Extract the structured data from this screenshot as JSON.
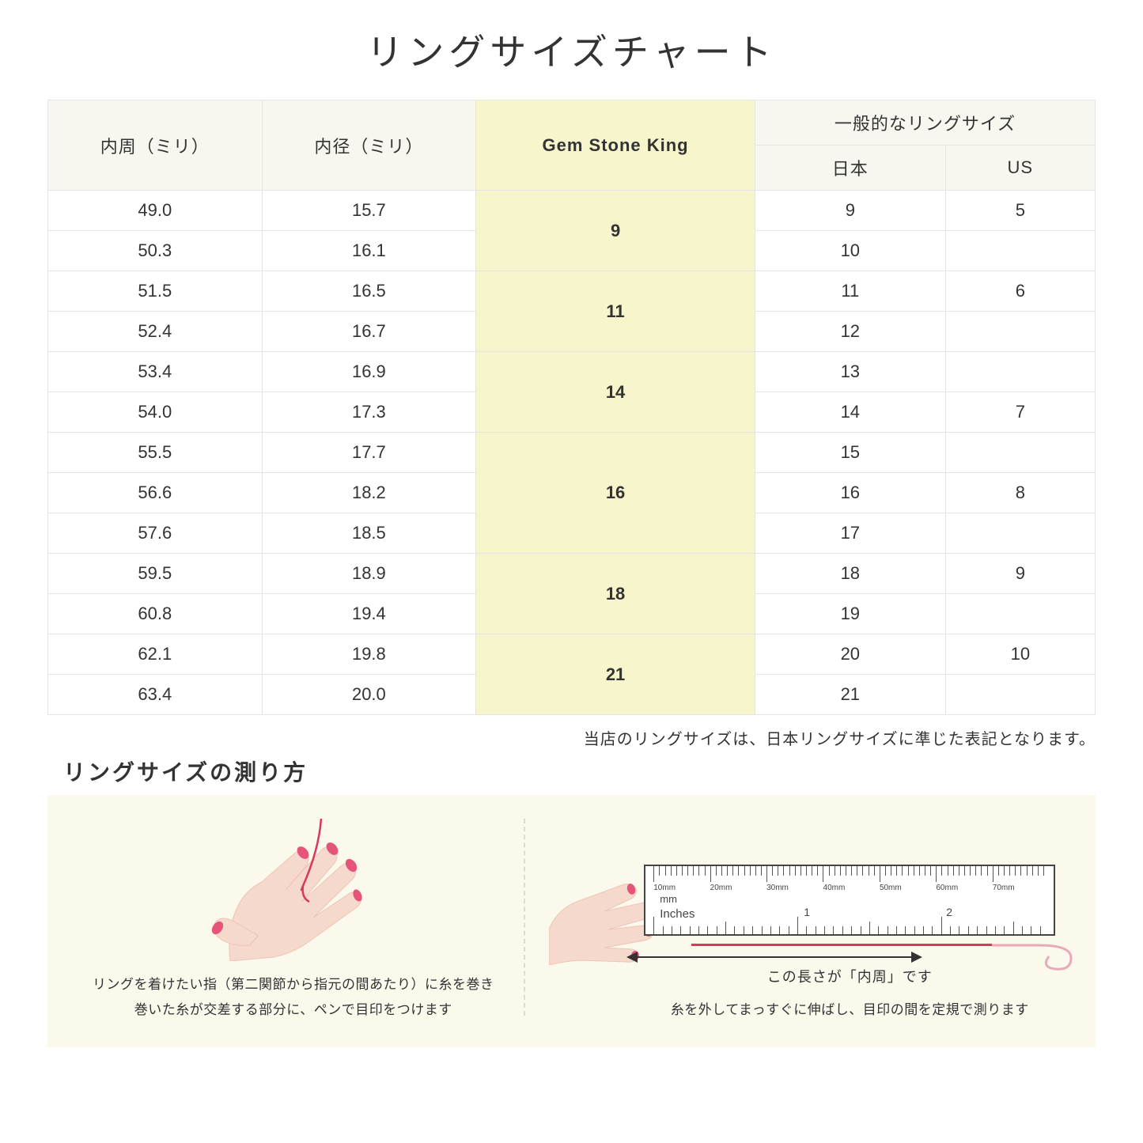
{
  "title": "リングサイズチャート",
  "table": {
    "headers": {
      "circumference": "内周（ミリ）",
      "diameter": "内径（ミリ）",
      "gsk": "Gem Stone King",
      "common_group": "一般的なリングサイズ",
      "japan": "日本",
      "us": "US"
    },
    "header_bg": "#f7f7f0",
    "highlight_bg": "#f7f5cc",
    "border_color": "#e5e5e5",
    "header_fontsize": 22,
    "cell_fontsize": 22,
    "groups": [
      {
        "gsk": "9",
        "rows": [
          {
            "c": "49.0",
            "d": "15.7",
            "jp": "9",
            "us": "5"
          },
          {
            "c": "50.3",
            "d": "16.1",
            "jp": "10",
            "us": ""
          }
        ]
      },
      {
        "gsk": "11",
        "rows": [
          {
            "c": "51.5",
            "d": "16.5",
            "jp": "11",
            "us": "6"
          },
          {
            "c": "52.4",
            "d": "16.7",
            "jp": "12",
            "us": ""
          }
        ]
      },
      {
        "gsk": "14",
        "rows": [
          {
            "c": "53.4",
            "d": "16.9",
            "jp": "13",
            "us": ""
          },
          {
            "c": "54.0",
            "d": "17.3",
            "jp": "14",
            "us": "7"
          }
        ]
      },
      {
        "gsk": "16",
        "rows": [
          {
            "c": "55.5",
            "d": "17.7",
            "jp": "15",
            "us": ""
          },
          {
            "c": "56.6",
            "d": "18.2",
            "jp": "16",
            "us": "8"
          },
          {
            "c": "57.6",
            "d": "18.5",
            "jp": "17",
            "us": ""
          }
        ]
      },
      {
        "gsk": "18",
        "rows": [
          {
            "c": "59.5",
            "d": "18.9",
            "jp": "18",
            "us": "9"
          },
          {
            "c": "60.8",
            "d": "19.4",
            "jp": "19",
            "us": ""
          }
        ]
      },
      {
        "gsk": "21",
        "rows": [
          {
            "c": "62.1",
            "d": "19.8",
            "jp": "20",
            "us": "10"
          },
          {
            "c": "63.4",
            "d": "20.0",
            "jp": "21",
            "us": ""
          }
        ]
      }
    ]
  },
  "note": "当店のリングサイズは、日本リングサイズに準じた表記となります。",
  "howto": {
    "title": "リングサイズの測り方",
    "panel_bg": "#fbf8ec",
    "skin_color": "#f6d9cd",
    "skin_shadow": "#eec4b5",
    "nail_color": "#e6547a",
    "thread_color": "#d63a5a",
    "left_text_l1": "リングを着けたい指（第二関節から指元の間あたり）に糸を巻き",
    "left_text_l2": "巻いた糸が交差する部分に、ペンで目印をつけます",
    "right_text": "糸を外してまっすぐに伸ばし、目印の間を定規で測ります",
    "ruler": {
      "bg": "#ffffff",
      "border": "#444444",
      "mm_label": "mm",
      "inches_label": "Inches",
      "mm_ticks": [
        "10mm",
        "20mm",
        "30mm",
        "40mm",
        "50mm",
        "60mm",
        "70mm"
      ],
      "inch_nums": [
        "1",
        "2"
      ]
    },
    "arrow_label": "この長さが「内周」です"
  }
}
